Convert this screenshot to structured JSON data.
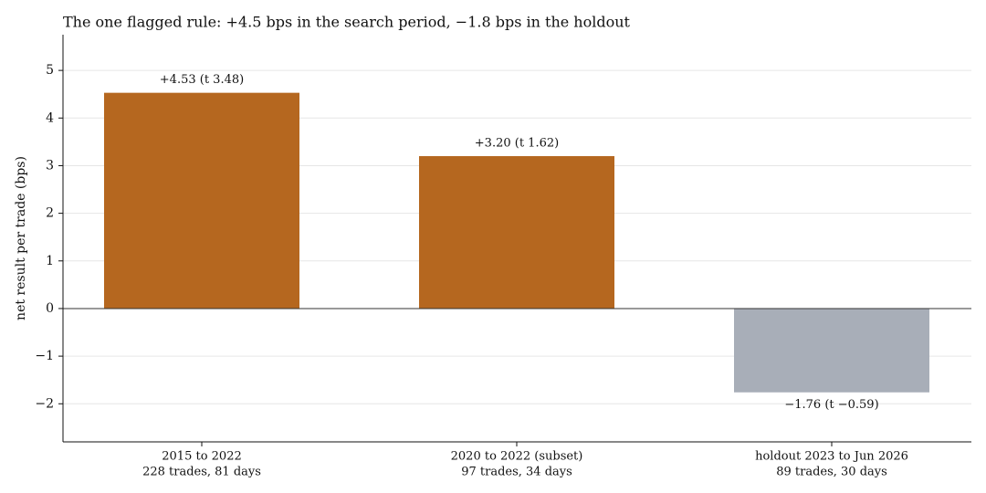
{
  "chart_data": {
    "type": "bar",
    "title": "The one flagged rule: +4.5 bps in the search period, −1.8 bps in the holdout",
    "y_label": "net result per trade (bps)",
    "categories": [
      "2015 to 2022",
      "2020 to 2022 (subset)",
      "holdout 2023 to Jun 2026"
    ],
    "category_notes": [
      "228 trades, 81 days",
      "97 trades, 34 days",
      "89 trades, 30 days"
    ],
    "values": [
      4.53,
      3.2,
      -1.76
    ],
    "value_labels": [
      "+4.53  (t 3.48)",
      "+3.20  (t 1.62)",
      "−1.76  (t −0.59)"
    ],
    "colors": [
      "#b5671f",
      "#b5671f",
      "#a8aeb8"
    ],
    "ylim": [
      -2.8,
      5.75
    ],
    "yticks": [
      {
        "value": -2,
        "label": "−2"
      },
      {
        "value": -1,
        "label": "−1"
      },
      0,
      1,
      2,
      3,
      4,
      5
    ],
    "grid": true
  }
}
